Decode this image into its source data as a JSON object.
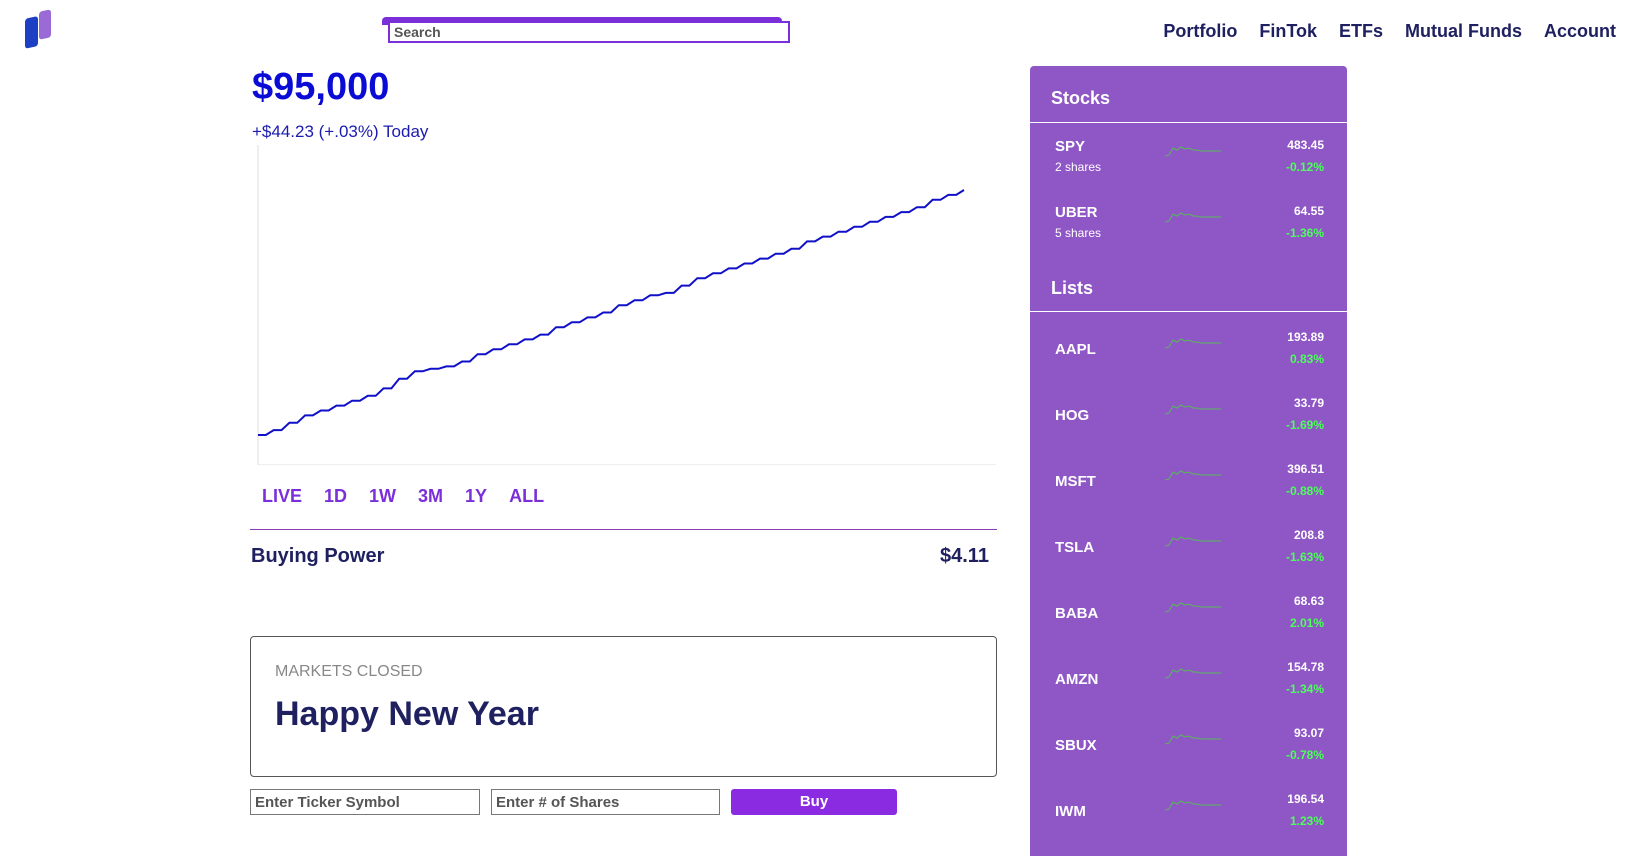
{
  "header": {
    "search_placeholder": "Search",
    "nav": [
      "Portfolio",
      "FinTok",
      "ETFs",
      "Mutual Funds",
      "Account"
    ]
  },
  "colors": {
    "accent": "#7b2fd8",
    "sidebar": "#8f57c6",
    "value_blue": "#0b0bd6",
    "navy": "#1f2060",
    "positive_green": "#4cff5a"
  },
  "portfolio": {
    "value": "$95,000",
    "change": "+$44.23 (+.03%) Today"
  },
  "chart_data": {
    "type": "line",
    "title": "",
    "xlabel": "",
    "ylabel": "",
    "grid": false,
    "series": [
      {
        "values": [
          0,
          2,
          5,
          8,
          10,
          12,
          14,
          16,
          19,
          23,
          26,
          27,
          28,
          30,
          33,
          35,
          37,
          39,
          41,
          44,
          46,
          48,
          50,
          53,
          55,
          57,
          58,
          61,
          64,
          66,
          68,
          70,
          72,
          74,
          76,
          79,
          81,
          83,
          85,
          87,
          89,
          91,
          93,
          96,
          98,
          100
        ]
      }
    ]
  },
  "ranges": [
    "LIVE",
    "1D",
    "1W",
    "3M",
    "1Y",
    "ALL"
  ],
  "buying_power": {
    "label": "Buying Power",
    "value": "$4.11"
  },
  "market": {
    "status": "MARKETS CLOSED",
    "message": "Happy New Year"
  },
  "trade": {
    "ticker_placeholder": "Enter Ticker Symbol",
    "shares_placeholder": "Enter # of Shares",
    "buy_label": "Buy"
  },
  "sidebar": {
    "stocks_title": "Stocks",
    "stocks": [
      {
        "symbol": "SPY",
        "shares": "2 shares",
        "price": "483.45",
        "change": "-0.12%"
      },
      {
        "symbol": "UBER",
        "shares": "5 shares",
        "price": "64.55",
        "change": "-1.36%"
      }
    ],
    "lists_title": "Lists",
    "lists": [
      {
        "symbol": "AAPL",
        "price": "193.89",
        "change": "0.83%"
      },
      {
        "symbol": "HOG",
        "price": "33.79",
        "change": "-1.69%"
      },
      {
        "symbol": "MSFT",
        "price": "396.51",
        "change": "-0.88%"
      },
      {
        "symbol": "TSLA",
        "price": "208.8",
        "change": "-1.63%"
      },
      {
        "symbol": "BABA",
        "price": "68.63",
        "change": "2.01%"
      },
      {
        "symbol": "AMZN",
        "price": "154.78",
        "change": "-1.34%"
      },
      {
        "symbol": "SBUX",
        "price": "93.07",
        "change": "-0.78%"
      },
      {
        "symbol": "IWM",
        "price": "196.54",
        "change": "1.23%"
      }
    ]
  }
}
